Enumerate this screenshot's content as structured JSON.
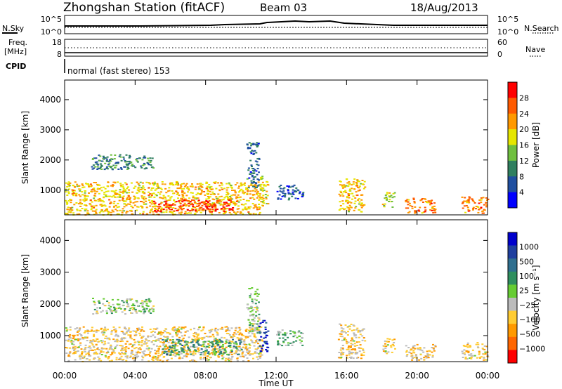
{
  "header": {
    "station": "Zhongshan Station (fitACF)",
    "beam": "Beam 03",
    "date": "18/Aug/2013"
  },
  "top_panels": {
    "nsky_label": "N.Sky",
    "nsearch_label": "N.Search",
    "noise_left_ticks": [
      "10^5",
      "10^0"
    ],
    "noise_right_ticks": [
      "10^5",
      "10^0"
    ],
    "freq_label_1": "Freq.",
    "freq_label_2": "[MHz]",
    "freq_ticks": [
      "18",
      "8"
    ],
    "nave_label": "Nave",
    "nave_ticks": [
      "60",
      "0"
    ],
    "cpid_label": "CPID",
    "cpid_text": "normal (fast stereo) 153"
  },
  "colors": {
    "power_scale": [
      "#0000ff",
      "#1f4fa0",
      "#2f7f5f",
      "#6fbf3f",
      "#e6e600",
      "#ff9900",
      "#ff5a00",
      "#ff0000"
    ],
    "velocity_scale": [
      "#ff0000",
      "#ff6600",
      "#ff9900",
      "#ffcc33",
      "#bbbbbb",
      "#66cc33",
      "#2f8f5f",
      "#2f6f8f",
      "#1f3f9f",
      "#0000cc"
    ]
  },
  "chart_data": [
    {
      "type": "heatmap",
      "panel": "power",
      "ylabel": "Slant Range [km]",
      "xlabel": "Time UT",
      "x_ticks": [
        "00:00",
        "04:00",
        "08:00",
        "12:00",
        "16:00",
        "20:00",
        "00:00"
      ],
      "x_range_hours": [
        0,
        24
      ],
      "y_ticks": [
        "1000",
        "2000",
        "3000",
        "4000"
      ],
      "ylim": [
        180,
        4650
      ],
      "colorbar_label": "Power [dB]",
      "colorbar_ticks": [
        "28",
        "24",
        "20",
        "16",
        "12",
        "8",
        "4"
      ],
      "colorbar_range": [
        0,
        32
      ],
      "regions": [
        {
          "t0": 0.0,
          "t1": 11.2,
          "r0": 200,
          "r1": 1300,
          "level": 20
        },
        {
          "t0": 5.0,
          "t1": 9.5,
          "r0": 300,
          "r1": 700,
          "level": 28
        },
        {
          "t0": 1.5,
          "t1": 5.0,
          "r0": 1700,
          "r1": 2200,
          "level": 10
        },
        {
          "t0": 10.3,
          "t1": 11.0,
          "r0": 1100,
          "r1": 2600,
          "level": 8
        },
        {
          "t0": 11.0,
          "t1": 11.5,
          "r0": 500,
          "r1": 1500,
          "level": 18
        },
        {
          "t0": 12.0,
          "t1": 13.5,
          "r0": 700,
          "r1": 1200,
          "level": 6
        },
        {
          "t0": 15.5,
          "t1": 17.0,
          "r0": 300,
          "r1": 1400,
          "level": 20
        },
        {
          "t0": 18.0,
          "t1": 18.7,
          "r0": 450,
          "r1": 950,
          "level": 16
        },
        {
          "t0": 19.3,
          "t1": 21.0,
          "r0": 250,
          "r1": 750,
          "level": 24
        },
        {
          "t0": 22.5,
          "t1": 24.0,
          "r0": 250,
          "r1": 800,
          "level": 24
        }
      ]
    },
    {
      "type": "heatmap",
      "panel": "velocity",
      "ylabel": "Slant Range [km]",
      "xlabel": "Time UT",
      "x_ticks": [
        "00:00",
        "04:00",
        "08:00",
        "12:00",
        "16:00",
        "20:00",
        "00:00"
      ],
      "x_range_hours": [
        0,
        24
      ],
      "y_ticks": [
        "1000",
        "2000",
        "3000",
        "4000"
      ],
      "ylim": [
        180,
        4650
      ],
      "colorbar_label": "Velocity [m s⁻¹]",
      "colorbar_ticks": [
        "1000",
        "500",
        "100",
        "25",
        "−25",
        "−100",
        "−500",
        "−1000"
      ],
      "colorbar_range": [
        -1200,
        1200
      ],
      "regions": [
        {
          "t0": 0.0,
          "t1": 11.2,
          "r0": 200,
          "r1": 1300,
          "level": -300
        },
        {
          "t0": 5.5,
          "t1": 10.0,
          "r0": 400,
          "r1": 900,
          "level": 400
        },
        {
          "t0": 1.5,
          "t1": 5.0,
          "r0": 1700,
          "r1": 2200,
          "level": 0
        },
        {
          "t0": 10.3,
          "t1": 11.0,
          "r0": 1100,
          "r1": 2600,
          "level": 20
        },
        {
          "t0": 11.0,
          "t1": 11.5,
          "r0": 500,
          "r1": 1500,
          "level": 900
        },
        {
          "t0": 12.0,
          "t1": 13.5,
          "r0": 700,
          "r1": 1200,
          "level": 120
        },
        {
          "t0": 15.5,
          "t1": 17.0,
          "r0": 300,
          "r1": 1400,
          "level": -300
        },
        {
          "t0": 18.0,
          "t1": 18.7,
          "r0": 450,
          "r1": 950,
          "level": -300
        },
        {
          "t0": 19.3,
          "t1": 21.0,
          "r0": 250,
          "r1": 750,
          "level": -300
        },
        {
          "t0": 22.5,
          "t1": 24.0,
          "r0": 250,
          "r1": 800,
          "level": -300
        }
      ]
    }
  ]
}
